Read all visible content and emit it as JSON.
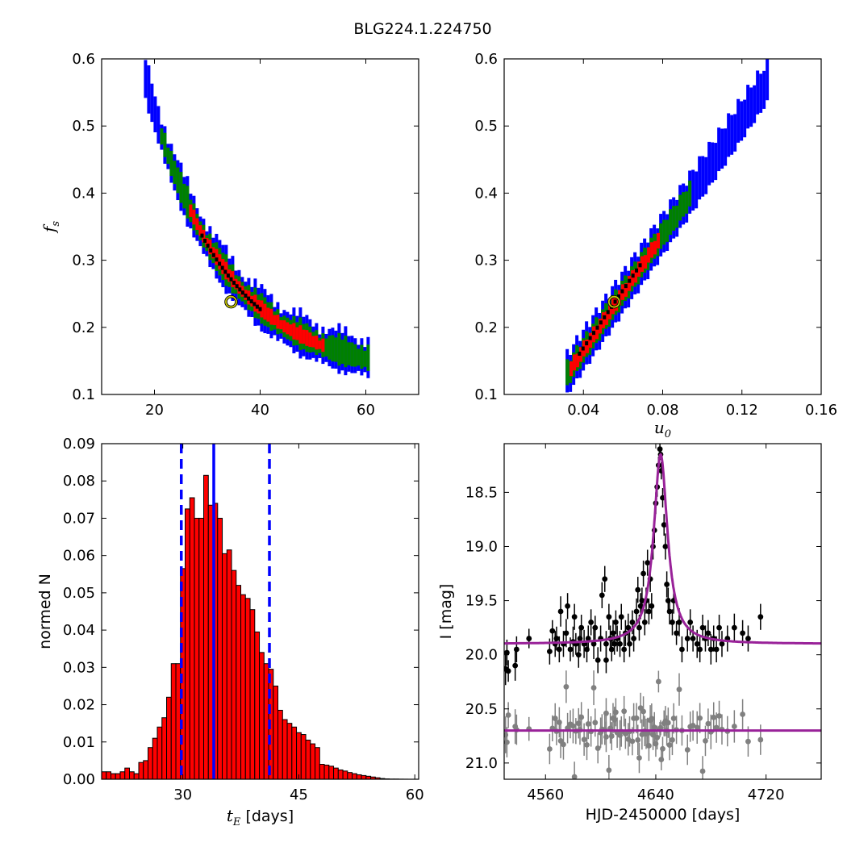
{
  "figure": {
    "title": "BLG224.1.224750"
  },
  "chart_data": [
    {
      "type": "heatmap",
      "panel": "top-left",
      "xlabel": "",
      "ylabel": "f_s",
      "ylabel_main": "f",
      "ylabel_sub": "s",
      "xlim": [
        10,
        70
      ],
      "ylim": [
        0.1,
        0.6
      ],
      "xticks": [
        20,
        40,
        60
      ],
      "xtick_labels": [
        "20",
        "40",
        "60"
      ],
      "yticks": [
        0.1,
        0.2,
        0.3,
        0.4,
        0.5,
        0.6
      ],
      "ytick_labels": [
        "0.1",
        "0.2",
        "0.3",
        "0.4",
        "0.5",
        "0.6"
      ],
      "colors": {
        "outer": "#0000ff",
        "mid": "#008000",
        "inner": "#ff0000",
        "core": "#000000",
        "best_fit_marker": "#c8c800"
      },
      "best_fit": {
        "x": 34.5,
        "y": 0.238
      },
      "band": {
        "description_free": true,
        "x_start": 18.0,
        "x_end": 60.5,
        "contour_fractions": [
          1.0,
          0.55,
          0.32,
          0.1
        ]
      }
    },
    {
      "type": "heatmap",
      "panel": "top-right",
      "xlabel": "u_0",
      "xlabel_main": "u",
      "xlabel_sub": "0",
      "ylabel": "",
      "xlim": [
        0.0,
        0.16
      ],
      "ylim": [
        0.1,
        0.6
      ],
      "xticks": [
        0.04,
        0.08,
        0.12,
        0.16
      ],
      "xtick_labels": [
        "0.04",
        "0.08",
        "0.12",
        "0.16"
      ],
      "yticks": [
        0.1,
        0.2,
        0.3,
        0.4,
        0.5,
        0.6
      ],
      "ytick_labels": [
        "0.1",
        "0.2",
        "0.3",
        "0.4",
        "0.5",
        "0.6"
      ],
      "colors": {
        "outer": "#0000ff",
        "mid": "#008000",
        "inner": "#ff0000",
        "core": "#000000",
        "best_fit_marker": "#c8c800"
      },
      "best_fit": {
        "x": 0.0555,
        "y": 0.238
      }
    },
    {
      "type": "bar",
      "panel": "bottom-left",
      "xlabel": "t_E  [days]",
      "xlabel_main": "t",
      "xlabel_sub": "E",
      "xlabel_rest": "  [days]",
      "ylabel": "normed N",
      "xlim": [
        19.5,
        60.5
      ],
      "ylim": [
        0.0,
        0.09
      ],
      "xticks": [
        30,
        45,
        60
      ],
      "xtick_labels": [
        "30",
        "45",
        "60"
      ],
      "yticks": [
        0.0,
        0.01,
        0.02,
        0.03,
        0.04,
        0.05,
        0.06,
        0.07,
        0.08,
        0.09
      ],
      "ytick_labels": [
        "0.00",
        "0.01",
        "0.02",
        "0.03",
        "0.04",
        "0.05",
        "0.06",
        "0.07",
        "0.08",
        "0.09"
      ],
      "bin_start": 19.5,
      "bin_width": 0.6,
      "values": [
        0.002,
        0.002,
        0.0015,
        0.0015,
        0.002,
        0.003,
        0.002,
        0.0015,
        0.0045,
        0.005,
        0.0085,
        0.011,
        0.014,
        0.0165,
        0.022,
        0.031,
        0.031,
        0.0565,
        0.0725,
        0.0755,
        0.07,
        0.07,
        0.0815,
        0.0735,
        0.074,
        0.07,
        0.0605,
        0.0615,
        0.056,
        0.052,
        0.0495,
        0.0485,
        0.0455,
        0.0395,
        0.034,
        0.031,
        0.0295,
        0.025,
        0.0185,
        0.016,
        0.015,
        0.014,
        0.0125,
        0.012,
        0.0105,
        0.0095,
        0.0085,
        0.004,
        0.0038,
        0.0035,
        0.003,
        0.0025,
        0.0022,
        0.0018,
        0.0015,
        0.0012,
        0.001,
        0.0008,
        0.0006,
        0.0004,
        0.0002,
        0.0001,
        5e-05,
        5e-05,
        2e-05,
        1e-05,
        0.0,
        0.0
      ],
      "bar_color": "#ff0000",
      "median_line": 34.0,
      "lower_line": 29.8,
      "upper_line": 41.2,
      "line_color": "#0000ff"
    },
    {
      "type": "scatter",
      "panel": "bottom-right",
      "xlabel": "HJD-2450000 [days]",
      "ylabel": "I [mag]",
      "xlim": [
        4530,
        4760
      ],
      "ylim": [
        21.15,
        18.05
      ],
      "y_inverted": true,
      "xticks": [
        4560,
        4640,
        4720
      ],
      "xtick_labels": [
        "4560",
        "4640",
        "4720"
      ],
      "yticks": [
        18.5,
        19.0,
        19.5,
        20.0,
        20.5,
        21.0
      ],
      "ytick_labels": [
        "18.5",
        "19.0",
        "19.5",
        "20.0",
        "20.5",
        "21.0"
      ],
      "model": {
        "color": "#992299",
        "baseline": 19.9,
        "peak_time": 4643.5,
        "peak_mag": 18.15,
        "width_days": 9.0
      },
      "residual_model": {
        "color": "#992299",
        "level": 20.7
      },
      "series": [
        {
          "role": "data",
          "color": "#000000"
        },
        {
          "role": "offset",
          "color": "#808080"
        }
      ],
      "data_points": [
        [
          4531,
          20.13,
          0.15
        ],
        [
          4532,
          19.98,
          0.12
        ],
        [
          4533,
          20.15,
          0.1
        ],
        [
          4538,
          20.1,
          0.14
        ],
        [
          4539,
          19.95,
          0.12
        ],
        [
          4548,
          19.85,
          0.09
        ],
        [
          4563,
          19.97,
          0.12
        ],
        [
          4565,
          19.78,
          0.1
        ],
        [
          4567,
          19.9,
          0.12
        ],
        [
          4568,
          19.85,
          0.11
        ],
        [
          4570,
          19.95,
          0.12
        ],
        [
          4571,
          19.6,
          0.14
        ],
        [
          4573,
          19.9,
          0.12
        ],
        [
          4575,
          19.8,
          0.13
        ],
        [
          4576,
          19.55,
          0.12
        ],
        [
          4578,
          19.95,
          0.11
        ],
        [
          4580,
          19.88,
          0.14
        ],
        [
          4581,
          19.65,
          0.12
        ],
        [
          4582,
          19.9,
          0.1
        ],
        [
          4584,
          20.0,
          0.12
        ],
        [
          4585,
          19.85,
          0.12
        ],
        [
          4586,
          19.75,
          0.12
        ],
        [
          4588,
          19.9,
          0.13
        ],
        [
          4590,
          19.95,
          0.12
        ],
        [
          4591,
          19.85,
          0.12
        ],
        [
          4593,
          19.7,
          0.12
        ],
        [
          4595,
          19.9,
          0.14
        ],
        [
          4596,
          19.75,
          0.11
        ],
        [
          4598,
          20.05,
          0.12
        ],
        [
          4600,
          19.85,
          0.12
        ],
        [
          4601,
          19.45,
          0.12
        ],
        [
          4603,
          19.3,
          0.12
        ],
        [
          4604,
          20.05,
          0.12
        ],
        [
          4604,
          19.9,
          0.12
        ],
        [
          4606,
          19.65,
          0.12
        ],
        [
          4607,
          19.85,
          0.12
        ],
        [
          4608,
          19.95,
          0.11
        ],
        [
          4609,
          19.8,
          0.12
        ],
        [
          4610,
          19.9,
          0.1
        ],
        [
          4611,
          19.7,
          0.11
        ],
        [
          4612,
          19.85,
          0.12
        ],
        [
          4614,
          19.9,
          0.12
        ],
        [
          4615,
          19.65,
          0.12
        ],
        [
          4617,
          19.95,
          0.12
        ],
        [
          4618,
          19.8,
          0.12
        ],
        [
          4620,
          19.75,
          0.13
        ],
        [
          4621,
          19.9,
          0.12
        ],
        [
          4623,
          19.7,
          0.11
        ],
        [
          4624,
          19.85,
          0.12
        ],
        [
          4626,
          19.6,
          0.12
        ],
        [
          4627,
          19.4,
          0.12
        ],
        [
          4628,
          19.75,
          0.12
        ],
        [
          4629,
          19.55,
          0.12
        ],
        [
          4630,
          19.5,
          0.12
        ],
        [
          4631,
          19.25,
          0.12
        ],
        [
          4632,
          19.7,
          0.12
        ],
        [
          4633,
          19.5,
          0.12
        ],
        [
          4634,
          19.15,
          0.12
        ],
        [
          4635,
          19.6,
          0.12
        ],
        [
          4636,
          19.3,
          0.12
        ],
        [
          4637,
          19.55,
          0.12
        ],
        [
          4638,
          19.0,
          0.12
        ],
        [
          4639,
          18.85,
          0.12
        ],
        [
          4640,
          18.6,
          0.1
        ],
        [
          4641,
          18.45,
          0.09
        ],
        [
          4642,
          18.25,
          0.08
        ],
        [
          4643,
          18.1,
          0.05
        ],
        [
          4643.5,
          18.15,
          0.05
        ],
        [
          4644,
          18.3,
          0.08
        ],
        [
          4645,
          18.55,
          0.09
        ],
        [
          4646,
          18.8,
          0.1
        ],
        [
          4647,
          19.0,
          0.12
        ],
        [
          4648,
          19.35,
          0.12
        ],
        [
          4649,
          19.5,
          0.12
        ],
        [
          4650,
          19.6,
          0.12
        ],
        [
          4652,
          19.7,
          0.12
        ],
        [
          4653,
          19.5,
          0.12
        ],
        [
          4655,
          19.8,
          0.11
        ],
        [
          4657,
          19.7,
          0.13
        ],
        [
          4659,
          19.95,
          0.12
        ],
        [
          4663,
          19.85,
          0.12
        ],
        [
          4665,
          19.7,
          0.12
        ],
        [
          4667,
          19.85,
          0.12
        ],
        [
          4670,
          19.9,
          0.13
        ],
        [
          4672,
          19.95,
          0.12
        ],
        [
          4674,
          19.75,
          0.12
        ],
        [
          4676,
          19.85,
          0.12
        ],
        [
          4678,
          19.8,
          0.12
        ],
        [
          4680,
          19.95,
          0.14
        ],
        [
          4682,
          19.85,
          0.12
        ],
        [
          4684,
          19.95,
          0.12
        ],
        [
          4686,
          19.75,
          0.12
        ],
        [
          4688,
          19.9,
          0.12
        ],
        [
          4692,
          19.85,
          0.12
        ],
        [
          4697,
          19.75,
          0.13
        ],
        [
          4703,
          19.8,
          0.12
        ],
        [
          4707,
          19.85,
          0.12
        ],
        [
          4716,
          19.65,
          0.12
        ]
      ]
    }
  ]
}
